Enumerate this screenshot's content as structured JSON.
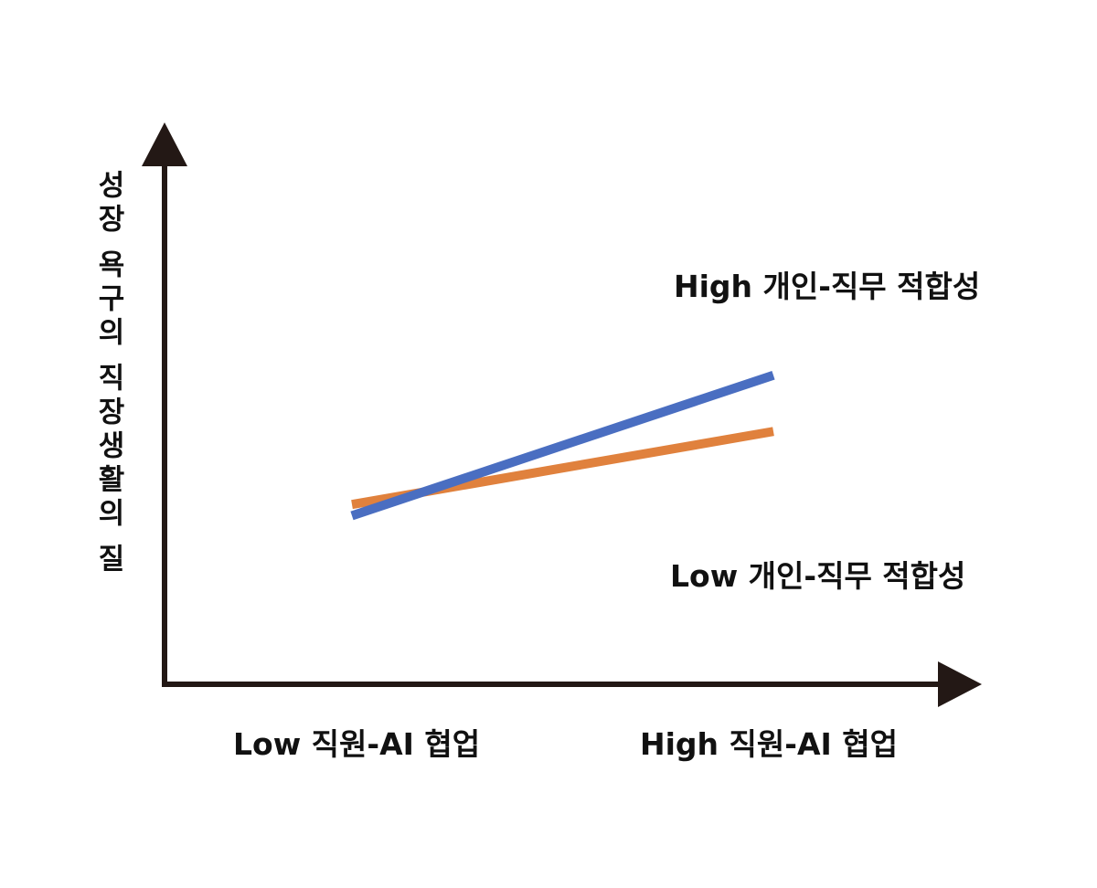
{
  "chart_data": {
    "type": "line",
    "title": "",
    "ylabel": "성장 욕구의 직장생활의 질",
    "xlabel": "",
    "categories": [
      "Low 직원-AI 협업",
      "High 직원-AI 협업"
    ],
    "ylim": [
      0,
      10
    ],
    "grid": false,
    "legend": "none",
    "series": [
      {
        "name": "High 개인-직무 적합성",
        "color": "#4a6ec1",
        "values": [
          3.0,
          5.5
        ]
      },
      {
        "name": "Low 개인-직무 적합성",
        "color": "#e0813d",
        "values": [
          3.2,
          4.5
        ]
      }
    ]
  },
  "colors": {
    "axis": "#231815",
    "text": "#111111"
  }
}
